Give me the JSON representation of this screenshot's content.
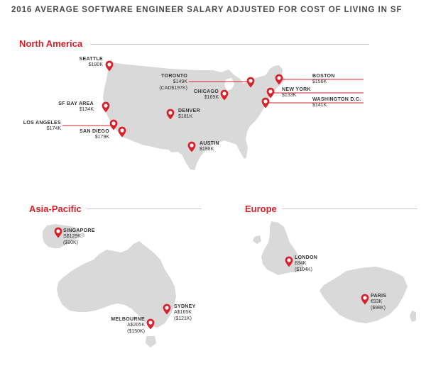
{
  "title": "2016 AVERAGE SOFTWARE ENGINEER SALARY ADJUSTED FOR COST OF LIVING IN SF",
  "colors": {
    "accent": "#d8222a",
    "land": "#d9d9d9",
    "rule": "#cccccc",
    "text": "#333333"
  },
  "icon": "map-pin-icon",
  "regions": {
    "north_america": "North America",
    "asia_pacific": "Asia-Pacific",
    "europe": "Europe"
  },
  "cities": {
    "seattle": {
      "name": "SEATTLE",
      "salary": "$180K"
    },
    "toronto": {
      "name": "TORONTO",
      "salary": "$149K",
      "local": "(CAD$197K)"
    },
    "boston": {
      "name": "BOSTON",
      "salary": "$156K"
    },
    "new_york": {
      "name": "NEW YORK",
      "salary": "$133K"
    },
    "chicago": {
      "name": "CHICAGO",
      "salary": "$169K"
    },
    "washington": {
      "name": "WASHINGTON D.C.",
      "salary": "$141K"
    },
    "sf_bay_area": {
      "name": "SF BAY AREA",
      "salary": "$134K"
    },
    "denver": {
      "name": "DENVER",
      "salary": "$181K"
    },
    "los_angeles": {
      "name": "LOS ANGELES",
      "salary": "$174K"
    },
    "san_diego": {
      "name": "SAN DIEGO",
      "salary": "$179K"
    },
    "austin": {
      "name": "AUSTIN",
      "salary": "$198K"
    },
    "singapore": {
      "name": "SINGAPORE",
      "salary": "S$129K",
      "usd": "($90K)"
    },
    "sydney": {
      "name": "SYDNEY",
      "salary": "A$165K",
      "usd": "($121K)"
    },
    "melbourne": {
      "name": "MELBOURNE",
      "salary": "A$205K",
      "usd": "($150K)"
    },
    "london": {
      "name": "LONDON",
      "salary": "£84K",
      "usd": "($104K)"
    },
    "paris": {
      "name": "PARIS",
      "salary": "€93K",
      "usd": "($98K)"
    }
  }
}
